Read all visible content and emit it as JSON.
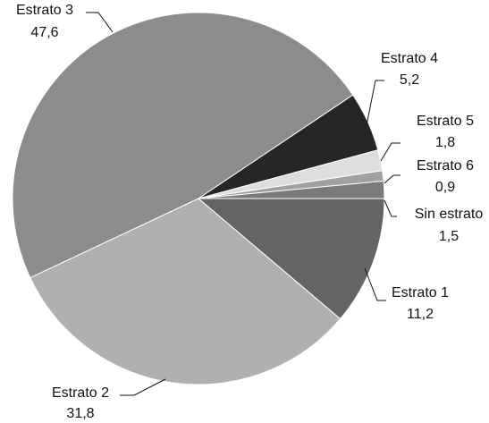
{
  "chart_data": {
    "type": "pie",
    "categories": [
      "Estrato 1",
      "Estrato 2",
      "Estrato 3",
      "Estrato 4",
      "Estrato 5",
      "Estrato 6",
      "Sin estrato"
    ],
    "values": [
      11.2,
      31.8,
      47.6,
      5.2,
      1.8,
      0.9,
      1.5
    ],
    "value_labels": [
      "11,2",
      "31,8",
      "47,6",
      "5,2",
      "1,8",
      "0,9",
      "1,5"
    ],
    "colors": [
      "#646464",
      "#b0b0b0",
      "#8c8c8c",
      "#262626",
      "#dedede",
      "#a0a0a0",
      "#7a7a7a"
    ]
  }
}
